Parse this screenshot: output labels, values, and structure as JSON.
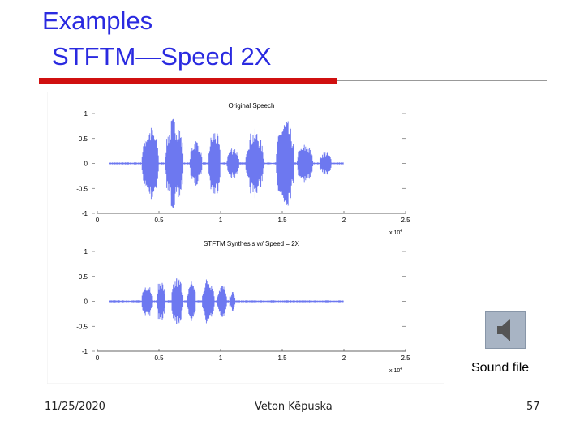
{
  "slide": {
    "title_lines": [
      "Examples",
      "STFTM—Speed 2X"
    ],
    "sound_label": "Sound file",
    "footer": {
      "date": "11/25/2020",
      "author": "Veton Këpuska",
      "page": "57"
    }
  },
  "chart_data": [
    {
      "type": "line",
      "title": "Original Speech",
      "xlim": [
        0,
        2.5
      ],
      "ylim": [
        -1,
        1
      ],
      "xticks": [
        0,
        0.5,
        1,
        1.5,
        2,
        2.5
      ],
      "yticks": [
        -1,
        -0.5,
        0,
        0.5,
        1
      ],
      "x_scale_label": {
        "base": "x 10",
        "exponent": "4"
      }
    },
    {
      "type": "line",
      "title": "STFTM Synthesis w/ Speed = 2X",
      "xlim": [
        0,
        2.5
      ],
      "ylim": [
        -1,
        1
      ],
      "xticks": [
        0,
        0.5,
        1,
        1.5,
        2,
        2.5
      ],
      "yticks": [
        -1,
        -0.5,
        0,
        0.5,
        1
      ],
      "x_scale_label": {
        "base": "x 10",
        "exponent": "4"
      }
    }
  ]
}
